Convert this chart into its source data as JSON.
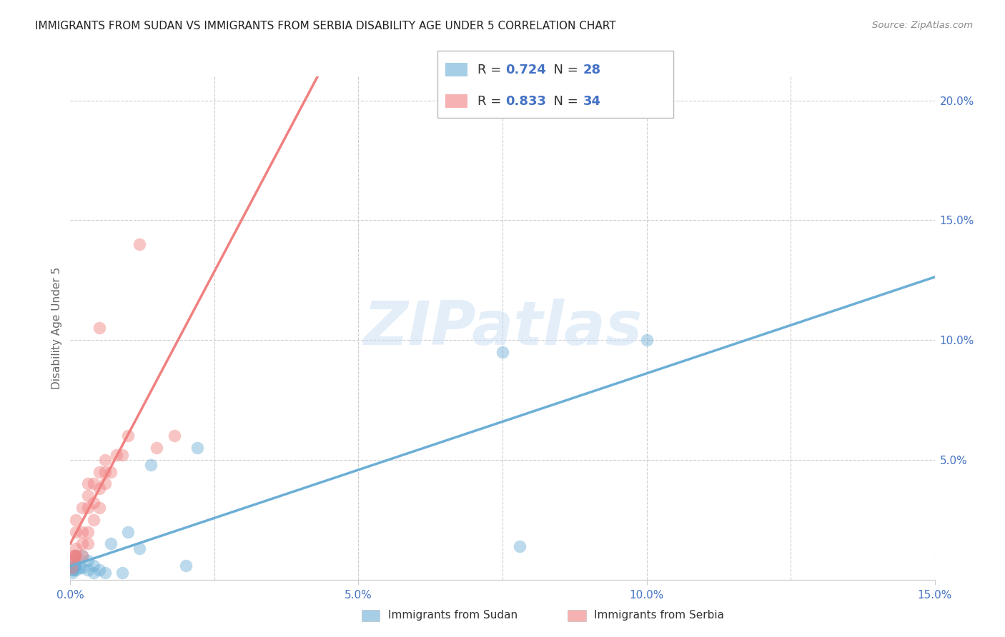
{
  "title": "IMMIGRANTS FROM SUDAN VS IMMIGRANTS FROM SERBIA DISABILITY AGE UNDER 5 CORRELATION CHART",
  "source": "Source: ZipAtlas.com",
  "ylabel": "Disability Age Under 5",
  "xlim": [
    0.0,
    0.15
  ],
  "ylim": [
    0.0,
    0.21
  ],
  "xticks": [
    0.0,
    0.05,
    0.1,
    0.15
  ],
  "xticklabels": [
    "0.0%",
    "5.0%",
    "10.0%",
    "15.0%"
  ],
  "yticks_right": [
    0.0,
    0.05,
    0.1,
    0.15,
    0.2
  ],
  "yticklabels_right": [
    "",
    "5.0%",
    "10.0%",
    "15.0%",
    "20.0%"
  ],
  "sudan_color": "#6baed6",
  "serbia_color": "#f08080",
  "sudan_R": 0.724,
  "sudan_N": 28,
  "serbia_R": 0.833,
  "serbia_N": 34,
  "watermark_text": "ZIPatlas",
  "sudan_legend": "Immigrants from Sudan",
  "serbia_legend": "Immigrants from Serbia",
  "grid_color": "#cccccc",
  "background_color": "#ffffff",
  "sudan_x": [
    0.0003,
    0.0004,
    0.0005,
    0.0006,
    0.0007,
    0.0008,
    0.001,
    0.001,
    0.001,
    0.0015,
    0.002,
    0.002,
    0.003,
    0.003,
    0.004,
    0.004,
    0.005,
    0.006,
    0.007,
    0.009,
    0.01,
    0.012,
    0.014,
    0.02,
    0.022,
    0.075,
    0.078,
    0.1
  ],
  "sudan_y": [
    0.003,
    0.004,
    0.004,
    0.005,
    0.006,
    0.007,
    0.004,
    0.006,
    0.01,
    0.005,
    0.005,
    0.01,
    0.004,
    0.008,
    0.003,
    0.006,
    0.004,
    0.003,
    0.015,
    0.003,
    0.02,
    0.013,
    0.048,
    0.006,
    0.055,
    0.095,
    0.014,
    0.1
  ],
  "serbia_x": [
    0.0002,
    0.0004,
    0.0006,
    0.0008,
    0.001,
    0.001,
    0.001,
    0.001,
    0.002,
    0.002,
    0.002,
    0.002,
    0.003,
    0.003,
    0.003,
    0.003,
    0.003,
    0.004,
    0.004,
    0.004,
    0.005,
    0.005,
    0.005,
    0.005,
    0.006,
    0.006,
    0.006,
    0.007,
    0.008,
    0.009,
    0.01,
    0.012,
    0.015,
    0.018
  ],
  "serbia_y": [
    0.005,
    0.008,
    0.01,
    0.01,
    0.01,
    0.013,
    0.02,
    0.025,
    0.01,
    0.015,
    0.02,
    0.03,
    0.015,
    0.02,
    0.03,
    0.035,
    0.04,
    0.025,
    0.032,
    0.04,
    0.03,
    0.038,
    0.045,
    0.105,
    0.04,
    0.045,
    0.05,
    0.045,
    0.052,
    0.052,
    0.06,
    0.14,
    0.055,
    0.06
  ],
  "tick_fontsize": 11,
  "ylabel_fontsize": 11,
  "title_fontsize": 11,
  "legend_fontsize": 13
}
